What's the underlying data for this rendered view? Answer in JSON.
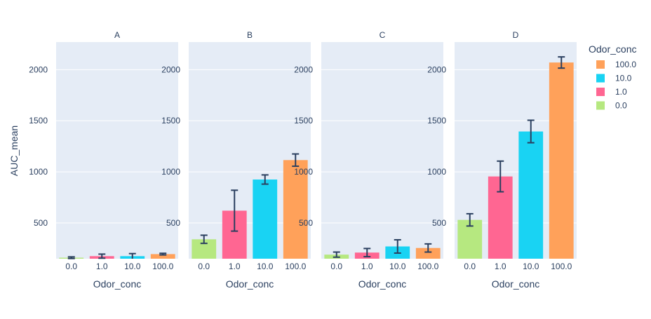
{
  "chart_data": {
    "type": "bar",
    "ylabel": "AUC_mean",
    "xlabel": "Odor_conc",
    "ylim": [
      150,
      2270
    ],
    "yticks": [
      500,
      1000,
      1500,
      2000
    ],
    "grid": true,
    "legend": {
      "title": "Odor_conc",
      "placement": "right",
      "entries": [
        {
          "label": "100.0",
          "color": "#FFA15A"
        },
        {
          "label": "10.0",
          "color": "#19D3F3"
        },
        {
          "label": "1.0",
          "color": "#FF6692"
        },
        {
          "label": "0.0",
          "color": "#B6E880"
        }
      ]
    },
    "categories": [
      "0.0",
      "1.0",
      "10.0",
      "100.0"
    ],
    "category_colors": [
      "#B6E880",
      "#FF6692",
      "#19D3F3",
      "#FFA15A"
    ],
    "error_color": "#2a3f5f",
    "panels": [
      {
        "title": "A",
        "values": [
          160,
          175,
          175,
          195
        ],
        "errors": [
          8,
          20,
          25,
          8
        ]
      },
      {
        "title": "B",
        "values": [
          340,
          620,
          925,
          1115
        ],
        "errors": [
          40,
          200,
          45,
          60
        ]
      },
      {
        "title": "C",
        "values": [
          190,
          210,
          270,
          255
        ],
        "errors": [
          25,
          40,
          65,
          40
        ]
      },
      {
        "title": "D",
        "values": [
          530,
          955,
          1395,
          2070
        ],
        "errors": [
          60,
          150,
          110,
          55
        ]
      }
    ]
  }
}
